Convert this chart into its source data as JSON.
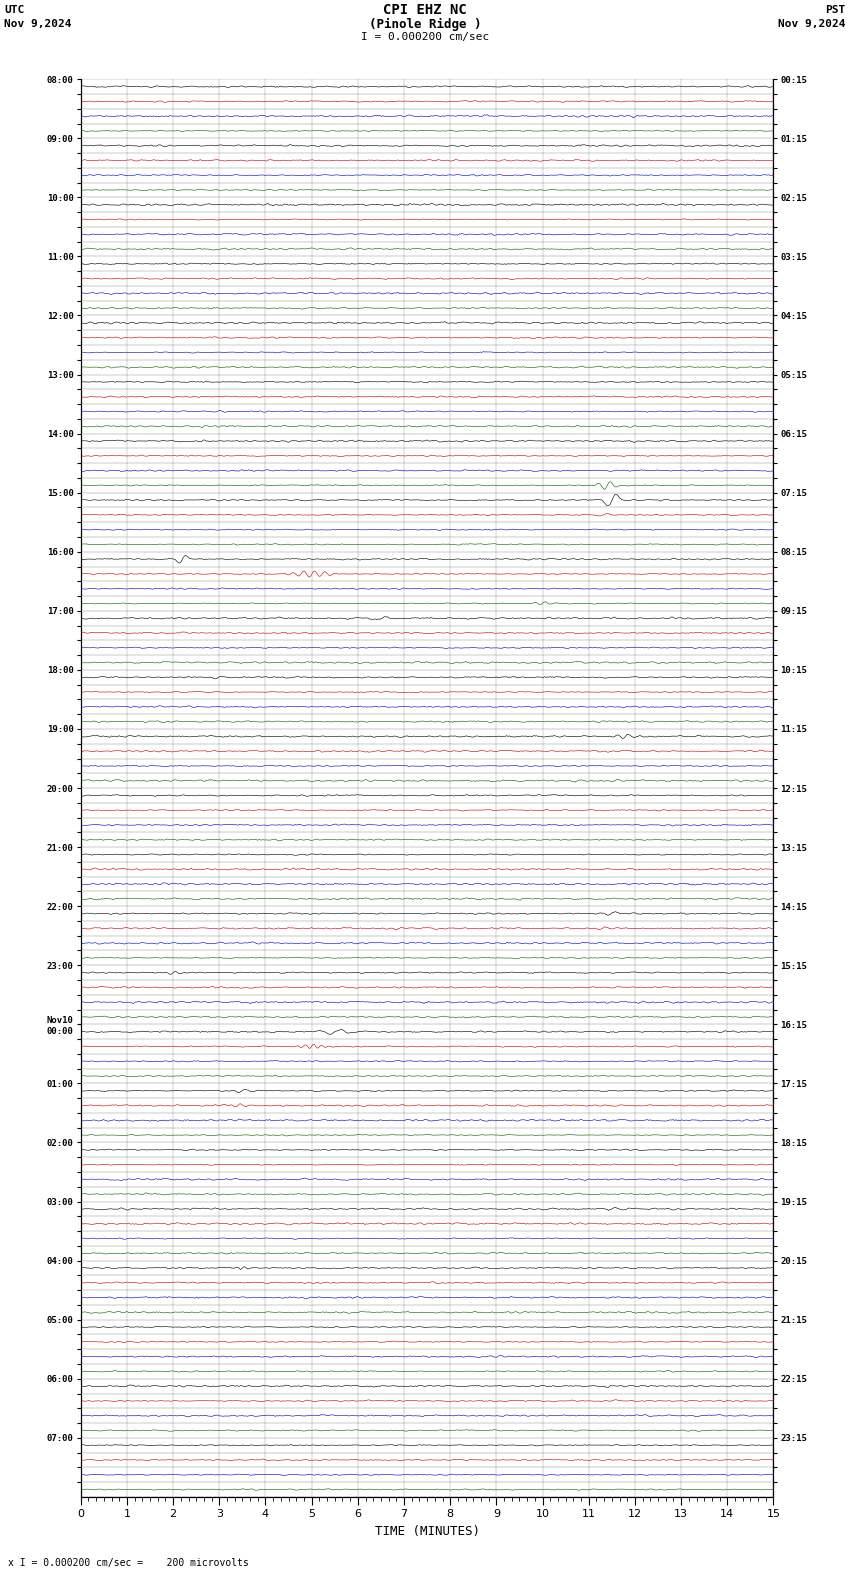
{
  "title_line1": "CPI EHZ NC",
  "title_line2": "(Pinole Ridge )",
  "scale_label": "I = 0.000200 cm/sec",
  "left_header": "UTC",
  "left_date": "Nov 9,2024",
  "right_header": "PST",
  "right_date": "Nov 9,2024",
  "xlabel": "TIME (MINUTES)",
  "bottom_note": "x I = 0.000200 cm/sec =    200 microvolts",
  "xlim": [
    0,
    15
  ],
  "xticks": [
    0,
    1,
    2,
    3,
    4,
    5,
    6,
    7,
    8,
    9,
    10,
    11,
    12,
    13,
    14,
    15
  ],
  "num_rows": 96,
  "trace_colors": [
    "#000000",
    "#cc0000",
    "#0000cc",
    "#006600"
  ],
  "left_labels": [
    "08:00",
    "",
    "",
    "",
    "09:00",
    "",
    "",
    "",
    "10:00",
    "",
    "",
    "",
    "11:00",
    "",
    "",
    "",
    "12:00",
    "",
    "",
    "",
    "13:00",
    "",
    "",
    "",
    "14:00",
    "",
    "",
    "",
    "15:00",
    "",
    "",
    "",
    "16:00",
    "",
    "",
    "",
    "17:00",
    "",
    "",
    "",
    "18:00",
    "",
    "",
    "",
    "19:00",
    "",
    "",
    "",
    "20:00",
    "",
    "",
    "",
    "21:00",
    "",
    "",
    "",
    "22:00",
    "",
    "",
    "",
    "23:00",
    "",
    "",
    "",
    "Nov10\n00:00",
    "",
    "",
    "",
    "01:00",
    "",
    "",
    "",
    "02:00",
    "",
    "",
    "",
    "03:00",
    "",
    "",
    "",
    "04:00",
    "",
    "",
    "",
    "05:00",
    "",
    "",
    "",
    "06:00",
    "",
    "",
    "",
    "07:00",
    "",
    "",
    ""
  ],
  "right_labels": [
    "00:15",
    "",
    "",
    "",
    "01:15",
    "",
    "",
    "",
    "02:15",
    "",
    "",
    "",
    "03:15",
    "",
    "",
    "",
    "04:15",
    "",
    "",
    "",
    "05:15",
    "",
    "",
    "",
    "06:15",
    "",
    "",
    "",
    "07:15",
    "",
    "",
    "",
    "08:15",
    "",
    "",
    "",
    "09:15",
    "",
    "",
    "",
    "10:15",
    "",
    "",
    "",
    "11:15",
    "",
    "",
    "",
    "12:15",
    "",
    "",
    "",
    "13:15",
    "",
    "",
    "",
    "14:15",
    "",
    "",
    "",
    "15:15",
    "",
    "",
    "",
    "16:15",
    "",
    "",
    "",
    "17:15",
    "",
    "",
    "",
    "18:15",
    "",
    "",
    "",
    "19:15",
    "",
    "",
    "",
    "20:15",
    "",
    "",
    "",
    "21:15",
    "",
    "",
    "",
    "22:15",
    "",
    "",
    "",
    "23:15",
    "",
    "",
    ""
  ],
  "bg_color": "#ffffff",
  "trace_scale": 0.35,
  "noise_amplitude": 0.06,
  "fig_width": 8.5,
  "fig_height": 15.84,
  "dpi": 100
}
